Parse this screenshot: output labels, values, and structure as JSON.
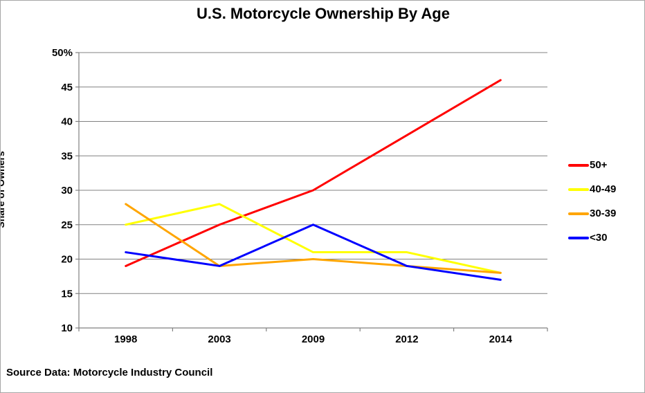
{
  "window": {
    "background": "#ffffff",
    "border_color": "#a6a6a6"
  },
  "chart_data": {
    "type": "line",
    "title": "U.S. Motorcycle Ownership By Age",
    "xlabel": "",
    "ylabel": "Share of Owners",
    "categories": [
      "1998",
      "2003",
      "2009",
      "2012",
      "2014"
    ],
    "series": [
      {
        "name": "50+",
        "color": "#ff0000",
        "values": [
          19,
          25,
          30,
          38,
          46
        ]
      },
      {
        "name": "40-49",
        "color": "#ffff00",
        "values": [
          25,
          28,
          21,
          21,
          18
        ]
      },
      {
        "name": "30-39",
        "color": "#ffa500",
        "values": [
          28,
          19,
          20,
          19,
          18
        ]
      },
      {
        "name": "<30",
        "color": "#0000ff",
        "values": [
          21,
          19,
          25,
          19,
          17
        ]
      }
    ],
    "ylim": [
      10,
      50
    ],
    "ytick_step": 5,
    "ytick_top_label": "50%",
    "grid": true,
    "axis_color": "#808080",
    "gridline_color": "#808080",
    "tick_label_color": "#000000",
    "legend_position": "right",
    "legend_labels": [
      "50+",
      "40-49",
      "30-39",
      "<30"
    ]
  },
  "source_note": "Source Data: Motorcycle Industry Council"
}
